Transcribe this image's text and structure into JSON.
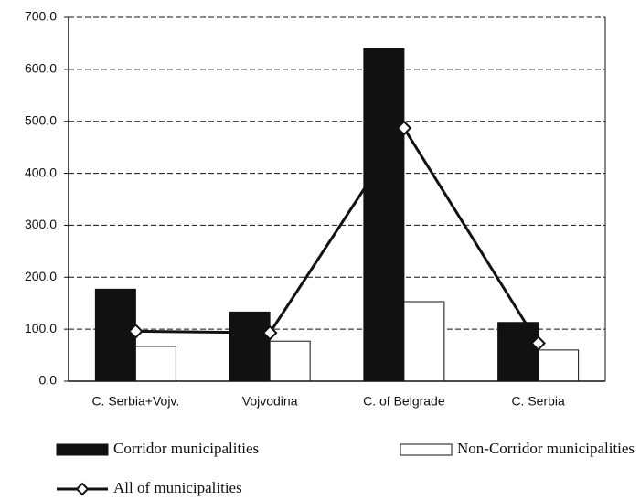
{
  "chart_data": {
    "type": "bar-line",
    "categories": [
      "C. Serbia+Vojv.",
      "Vojvodina",
      "C. of Belgrade",
      "C. Serbia"
    ],
    "series": [
      {
        "name": "Corridor municipalities",
        "type": "bar",
        "color": "#111111",
        "values": [
          177,
          133,
          640,
          113
        ]
      },
      {
        "name": "Non-Corridor municipalities",
        "type": "bar",
        "color": "#ffffff",
        "values": [
          67,
          77,
          153,
          60
        ]
      },
      {
        "name": "All of municipalities",
        "type": "line",
        "color": "#111111",
        "values": [
          96,
          93,
          487,
          73
        ]
      }
    ],
    "ylim": [
      0,
      700
    ],
    "yticks": [
      {
        "value": 0,
        "label": "0.0"
      },
      {
        "value": 100,
        "label": "100.0"
      },
      {
        "value": 200,
        "label": "200.0"
      },
      {
        "value": 300,
        "label": "300.0"
      },
      {
        "value": 400,
        "label": "400.0"
      },
      {
        "value": 500,
        "label": "500.0"
      },
      {
        "value": 600,
        "label": "600.0"
      },
      {
        "value": 700,
        "label": "700.0"
      }
    ],
    "grid": true,
    "legend": "bottom"
  }
}
